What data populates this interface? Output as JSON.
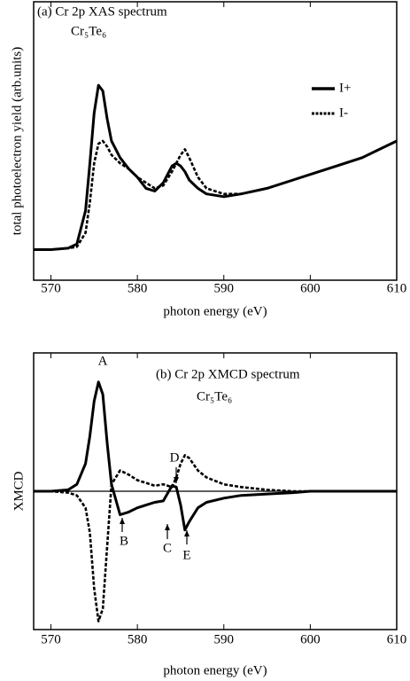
{
  "chart_data": [
    {
      "type": "line",
      "annotations": [
        "(a) Cr 2p XAS spectrum",
        "Cr₅Te₆"
      ],
      "xlabel": "photon energy (eV)",
      "ylabel": "total photoelectron yield (arb.units)",
      "xlim": [
        568,
        610
      ],
      "xticks": [
        570,
        580,
        590,
        600,
        610
      ],
      "ylim": [
        0,
        1
      ],
      "x": [
        568,
        570,
        572,
        573,
        574,
        574.5,
        575,
        575.5,
        576,
        576.5,
        577,
        578,
        579,
        580,
        581,
        582,
        583,
        584,
        584.5,
        585,
        585.5,
        586,
        587,
        588,
        590,
        592,
        595,
        598,
        600,
        603,
        606,
        608,
        610
      ],
      "series": [
        {
          "name": "I+",
          "color": "#000000",
          "style": "solid",
          "values": [
            0.11,
            0.11,
            0.115,
            0.13,
            0.25,
            0.42,
            0.6,
            0.7,
            0.68,
            0.58,
            0.5,
            0.44,
            0.4,
            0.37,
            0.33,
            0.32,
            0.35,
            0.41,
            0.42,
            0.41,
            0.39,
            0.36,
            0.33,
            0.31,
            0.3,
            0.31,
            0.33,
            0.36,
            0.38,
            0.41,
            0.44,
            0.47,
            0.5
          ]
        },
        {
          "name": "I-",
          "color": "#000000",
          "style": "dashed",
          "values": [
            0.11,
            0.11,
            0.115,
            0.12,
            0.17,
            0.28,
            0.42,
            0.49,
            0.5,
            0.48,
            0.45,
            0.42,
            0.4,
            0.37,
            0.35,
            0.33,
            0.34,
            0.39,
            0.42,
            0.45,
            0.47,
            0.44,
            0.37,
            0.33,
            0.31,
            0.31,
            0.33,
            0.36,
            0.38,
            0.41,
            0.44,
            0.47,
            0.5
          ]
        }
      ]
    },
    {
      "type": "line",
      "annotations": [
        "(b) Cr 2p XMCD spectrum",
        "Cr₅Te₆",
        "A",
        "B",
        "C",
        "D",
        "E"
      ],
      "xlabel": "photon energy (eV)",
      "ylabel": "XMCD",
      "xlim": [
        568,
        610
      ],
      "xticks": [
        570,
        580,
        590,
        600,
        610
      ],
      "ylim": [
        -1,
        1
      ],
      "zero_line": true,
      "x": [
        568,
        570,
        572,
        573,
        574,
        574.5,
        575,
        575.5,
        576,
        576.5,
        577,
        578,
        579,
        580,
        581,
        582,
        583,
        584,
        584.5,
        585,
        585.5,
        586,
        587,
        588,
        590,
        592,
        595,
        598,
        600,
        603,
        606,
        608,
        610
      ],
      "series": [
        {
          "color": "#000000",
          "style": "solid",
          "values": [
            0,
            0,
            0.01,
            0.05,
            0.2,
            0.4,
            0.65,
            0.79,
            0.7,
            0.35,
            0.05,
            -0.17,
            -0.15,
            -0.12,
            -0.1,
            -0.08,
            -0.07,
            0.04,
            0.03,
            -0.1,
            -0.28,
            -0.22,
            -0.12,
            -0.08,
            -0.05,
            -0.03,
            -0.02,
            -0.01,
            0,
            0,
            0,
            0,
            0
          ]
        },
        {
          "color": "#000000",
          "style": "dashed",
          "values": [
            0,
            0,
            -0.01,
            -0.03,
            -0.12,
            -0.3,
            -0.7,
            -0.94,
            -0.85,
            -0.4,
            0.05,
            0.15,
            0.12,
            0.08,
            0.06,
            0.04,
            0.05,
            0.03,
            0.1,
            0.2,
            0.26,
            0.24,
            0.15,
            0.1,
            0.05,
            0.03,
            0.01,
            0,
            0,
            0,
            0,
            0,
            0
          ]
        }
      ]
    }
  ]
}
